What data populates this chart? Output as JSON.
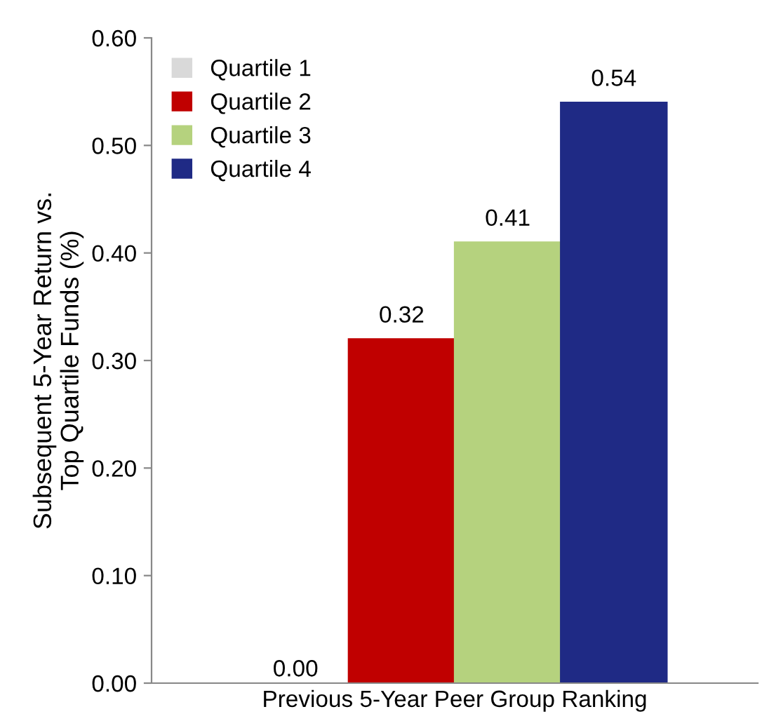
{
  "chart_data": {
    "type": "bar",
    "ylabel": "Subsequent 5-Year Return vs.\nTop Quartile Funds (%)",
    "categories": [
      "Previous 5-Year Peer Group Ranking"
    ],
    "series": [
      {
        "name": "Quartile 1",
        "color": "#d9d9d9",
        "values": [
          0.0
        ],
        "value_labels": [
          "0.00"
        ]
      },
      {
        "name": "Quartile 2",
        "color": "#c00000",
        "values": [
          0.32
        ],
        "value_labels": [
          "0.32"
        ]
      },
      {
        "name": "Quartile 3",
        "color": "#b5d27e",
        "values": [
          0.41
        ],
        "value_labels": [
          "0.41"
        ]
      },
      {
        "name": "Quartile 4",
        "color": "#1f2a85",
        "values": [
          0.54
        ],
        "value_labels": [
          "0.54"
        ]
      }
    ],
    "ylim": [
      0,
      0.6
    ],
    "yticks": [
      {
        "value": 0,
        "label": "0.00"
      },
      {
        "value": 0.1,
        "label": "0.10"
      },
      {
        "value": 0.2,
        "label": "0.20"
      },
      {
        "value": 0.3,
        "label": "0.30"
      },
      {
        "value": 0.4,
        "label": "0.40"
      },
      {
        "value": 0.5,
        "label": "0.50"
      },
      {
        "value": 0.6,
        "label": "0.60"
      }
    ],
    "grid": false,
    "legend": "top left"
  }
}
